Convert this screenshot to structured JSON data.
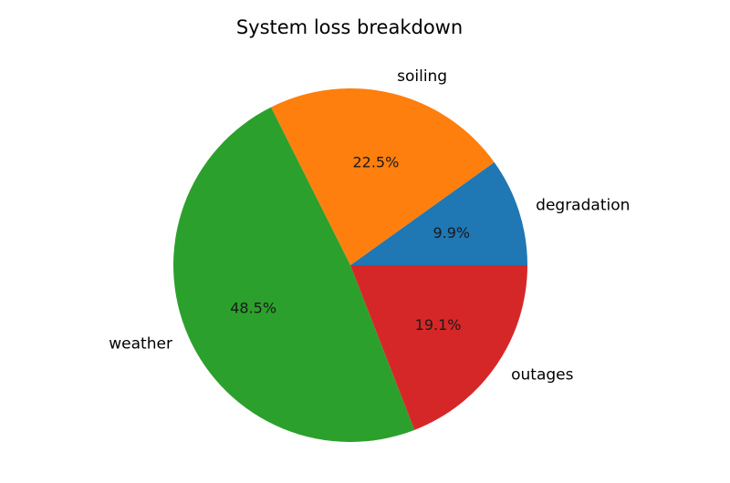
{
  "chart_data": {
    "type": "pie",
    "title": "System loss breakdown",
    "start_angle_deg": 0,
    "direction": "counterclockwise",
    "slices": [
      {
        "label": "degradation",
        "value": 9.9,
        "pct_label": "9.9%",
        "color": "#1f77b4"
      },
      {
        "label": "soiling",
        "value": 22.5,
        "pct_label": "22.5%",
        "color": "#ff7f0e"
      },
      {
        "label": "weather",
        "value": 48.5,
        "pct_label": "48.5%",
        "color": "#2ca02c"
      },
      {
        "label": "outages",
        "value": 19.1,
        "pct_label": "19.1%",
        "color": "#d62728"
      }
    ]
  }
}
